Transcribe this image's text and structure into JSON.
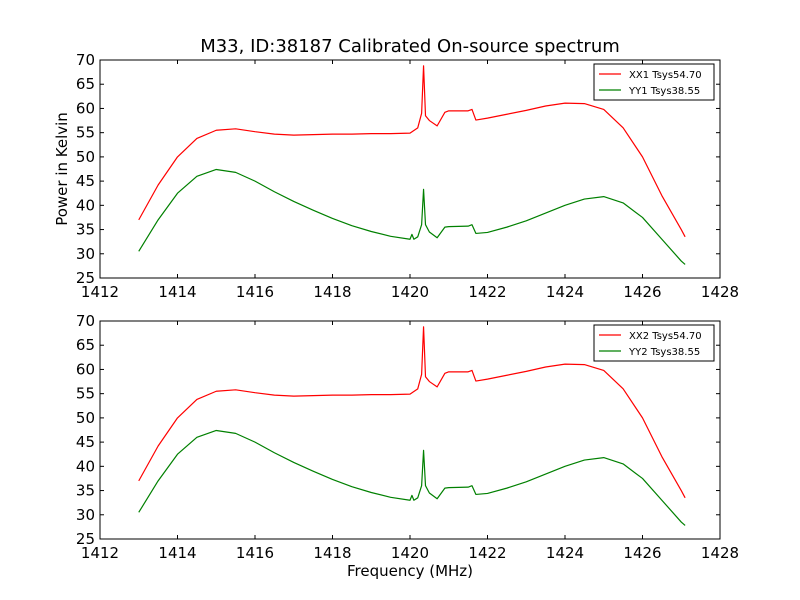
{
  "title": "M33, ID:38187 Calibrated On-source spectrum",
  "chart_data": [
    {
      "type": "line",
      "xlabel": "",
      "ylabel": "Power in Kelvin",
      "xlim": [
        1412,
        1428
      ],
      "ylim": [
        25,
        70
      ],
      "xticks": [
        1412,
        1414,
        1416,
        1418,
        1420,
        1422,
        1424,
        1426,
        1428
      ],
      "yticks": [
        25,
        30,
        35,
        40,
        45,
        50,
        55,
        60,
        65,
        70
      ],
      "legend": "top-right",
      "series": [
        {
          "name": "XX1 Tsys54.70",
          "color": "#ff0000",
          "x": [
            1413.0,
            1413.5,
            1414.0,
            1414.5,
            1415.0,
            1415.5,
            1416.0,
            1416.5,
            1417.0,
            1417.5,
            1418.0,
            1418.5,
            1419.0,
            1419.5,
            1420.0,
            1420.2,
            1420.3,
            1420.35,
            1420.4,
            1420.5,
            1420.7,
            1420.9,
            1421.0,
            1421.5,
            1421.6,
            1421.7,
            1422.0,
            1422.5,
            1423.0,
            1423.5,
            1424.0,
            1424.5,
            1425.0,
            1425.5,
            1426.0,
            1426.5,
            1427.0,
            1427.1
          ],
          "values": [
            37.0,
            44.2,
            50.0,
            53.8,
            55.5,
            55.8,
            55.2,
            54.7,
            54.5,
            54.6,
            54.7,
            54.7,
            54.8,
            54.8,
            54.9,
            56.0,
            59.0,
            68.8,
            58.5,
            57.5,
            56.4,
            59.2,
            59.5,
            59.5,
            59.8,
            57.6,
            58.0,
            58.8,
            59.6,
            60.5,
            61.1,
            61.0,
            59.8,
            56.0,
            50.0,
            42.0,
            35.0,
            33.5
          ]
        },
        {
          "name": "YY1 Tsys38.55",
          "color": "#008000",
          "x": [
            1413.0,
            1413.5,
            1414.0,
            1414.5,
            1415.0,
            1415.5,
            1416.0,
            1416.5,
            1417.0,
            1417.5,
            1418.0,
            1418.5,
            1419.0,
            1419.5,
            1420.0,
            1420.05,
            1420.1,
            1420.2,
            1420.3,
            1420.35,
            1420.4,
            1420.5,
            1420.7,
            1420.9,
            1421.0,
            1421.5,
            1421.6,
            1421.7,
            1422.0,
            1422.5,
            1423.0,
            1423.5,
            1424.0,
            1424.5,
            1425.0,
            1425.5,
            1426.0,
            1426.5,
            1427.0,
            1427.1
          ],
          "values": [
            30.5,
            37.0,
            42.5,
            46.0,
            47.4,
            46.8,
            45.0,
            42.8,
            40.8,
            39.0,
            37.3,
            35.8,
            34.6,
            33.6,
            33.0,
            34.0,
            33.0,
            33.5,
            36.0,
            43.3,
            36.0,
            34.5,
            33.3,
            35.5,
            35.6,
            35.7,
            36.0,
            34.2,
            34.4,
            35.5,
            36.8,
            38.4,
            40.0,
            41.3,
            41.8,
            40.5,
            37.5,
            33.0,
            28.5,
            27.8
          ]
        }
      ]
    },
    {
      "type": "line",
      "xlabel": "Frequency (MHz)",
      "ylabel": "",
      "xlim": [
        1412,
        1428
      ],
      "ylim": [
        25,
        70
      ],
      "xticks": [
        1412,
        1414,
        1416,
        1418,
        1420,
        1422,
        1424,
        1426,
        1428
      ],
      "yticks": [
        25,
        30,
        35,
        40,
        45,
        50,
        55,
        60,
        65,
        70
      ],
      "legend": "top-right",
      "series": [
        {
          "name": "XX2 Tsys54.70",
          "color": "#ff0000",
          "x": [
            1413.0,
            1413.5,
            1414.0,
            1414.5,
            1415.0,
            1415.5,
            1416.0,
            1416.5,
            1417.0,
            1417.5,
            1418.0,
            1418.5,
            1419.0,
            1419.5,
            1420.0,
            1420.2,
            1420.3,
            1420.35,
            1420.4,
            1420.5,
            1420.7,
            1420.9,
            1421.0,
            1421.5,
            1421.6,
            1421.7,
            1422.0,
            1422.5,
            1423.0,
            1423.5,
            1424.0,
            1424.5,
            1425.0,
            1425.5,
            1426.0,
            1426.5,
            1427.0,
            1427.1
          ],
          "values": [
            37.0,
            44.2,
            50.0,
            53.8,
            55.5,
            55.8,
            55.2,
            54.7,
            54.5,
            54.6,
            54.7,
            54.7,
            54.8,
            54.8,
            54.9,
            56.0,
            59.0,
            68.8,
            58.5,
            57.5,
            56.4,
            59.2,
            59.5,
            59.5,
            59.8,
            57.6,
            58.0,
            58.8,
            59.6,
            60.5,
            61.1,
            61.0,
            59.8,
            56.0,
            50.0,
            42.0,
            35.0,
            33.5
          ]
        },
        {
          "name": "YY2 Tsys38.55",
          "color": "#008000",
          "x": [
            1413.0,
            1413.5,
            1414.0,
            1414.5,
            1415.0,
            1415.5,
            1416.0,
            1416.5,
            1417.0,
            1417.5,
            1418.0,
            1418.5,
            1419.0,
            1419.5,
            1420.0,
            1420.05,
            1420.1,
            1420.2,
            1420.3,
            1420.35,
            1420.4,
            1420.5,
            1420.7,
            1420.9,
            1421.0,
            1421.5,
            1421.6,
            1421.7,
            1422.0,
            1422.5,
            1423.0,
            1423.5,
            1424.0,
            1424.5,
            1425.0,
            1425.5,
            1426.0,
            1426.5,
            1427.0,
            1427.1
          ],
          "values": [
            30.5,
            37.0,
            42.5,
            46.0,
            47.4,
            46.8,
            45.0,
            42.8,
            40.8,
            39.0,
            37.3,
            35.8,
            34.6,
            33.6,
            33.0,
            34.0,
            33.0,
            33.5,
            36.0,
            43.3,
            36.0,
            34.5,
            33.3,
            35.5,
            35.6,
            35.7,
            36.0,
            34.2,
            34.4,
            35.5,
            36.8,
            38.4,
            40.0,
            41.3,
            41.8,
            40.5,
            37.5,
            33.0,
            28.5,
            27.8
          ]
        }
      ]
    }
  ]
}
